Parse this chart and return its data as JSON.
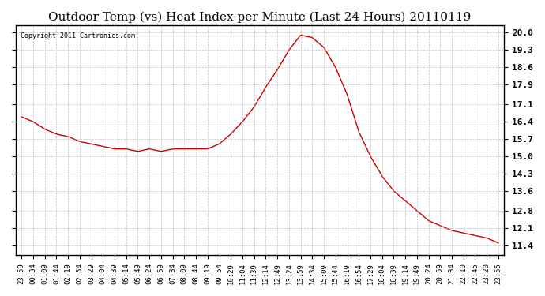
{
  "title": "Outdoor Temp (vs) Heat Index per Minute (Last 24 Hours) 20110119",
  "copyright_text": "Copyright 2011 Cartronics.com",
  "line_color": "#cc0000",
  "background_color": "#ffffff",
  "grid_color": "#aaaaaa",
  "yticks": [
    11.4,
    12.1,
    12.8,
    13.6,
    14.3,
    15.0,
    15.7,
    16.4,
    17.1,
    17.9,
    18.6,
    19.3,
    20.0
  ],
  "ylim": [
    11.0,
    20.3
  ],
  "xtick_labels": [
    "23:59",
    "00:34",
    "01:09",
    "01:44",
    "02:19",
    "02:54",
    "03:29",
    "04:04",
    "04:39",
    "05:14",
    "05:49",
    "06:24",
    "06:59",
    "07:34",
    "08:09",
    "08:44",
    "09:19",
    "09:54",
    "10:29",
    "11:04",
    "11:39",
    "12:14",
    "12:49",
    "13:24",
    "13:59",
    "14:34",
    "15:09",
    "15:44",
    "16:19",
    "16:54",
    "17:29",
    "18:04",
    "18:39",
    "19:14",
    "19:49",
    "20:24",
    "20:59",
    "21:34",
    "22:10",
    "22:45",
    "23:20",
    "23:55"
  ],
  "data_x": [
    0,
    1,
    2,
    3,
    4,
    5,
    6,
    7,
    8,
    9,
    10,
    11,
    12,
    13,
    14,
    15,
    16,
    17,
    18,
    19,
    20,
    21,
    22,
    23,
    24,
    25,
    26,
    27,
    28,
    29,
    30,
    31,
    32,
    33,
    34,
    35,
    36,
    37,
    38,
    39,
    40,
    41
  ],
  "data_y": [
    16.6,
    16.4,
    16.1,
    15.9,
    15.8,
    15.6,
    15.5,
    15.4,
    15.3,
    15.3,
    15.2,
    15.3,
    15.2,
    15.3,
    15.3,
    15.3,
    15.3,
    15.5,
    15.9,
    16.4,
    17.0,
    17.8,
    18.5,
    19.3,
    19.9,
    19.8,
    19.4,
    18.6,
    17.5,
    16.0,
    15.0,
    14.2,
    13.6,
    13.2,
    12.8,
    12.4,
    12.2,
    12.0,
    11.9,
    11.8,
    11.7,
    11.5
  ]
}
